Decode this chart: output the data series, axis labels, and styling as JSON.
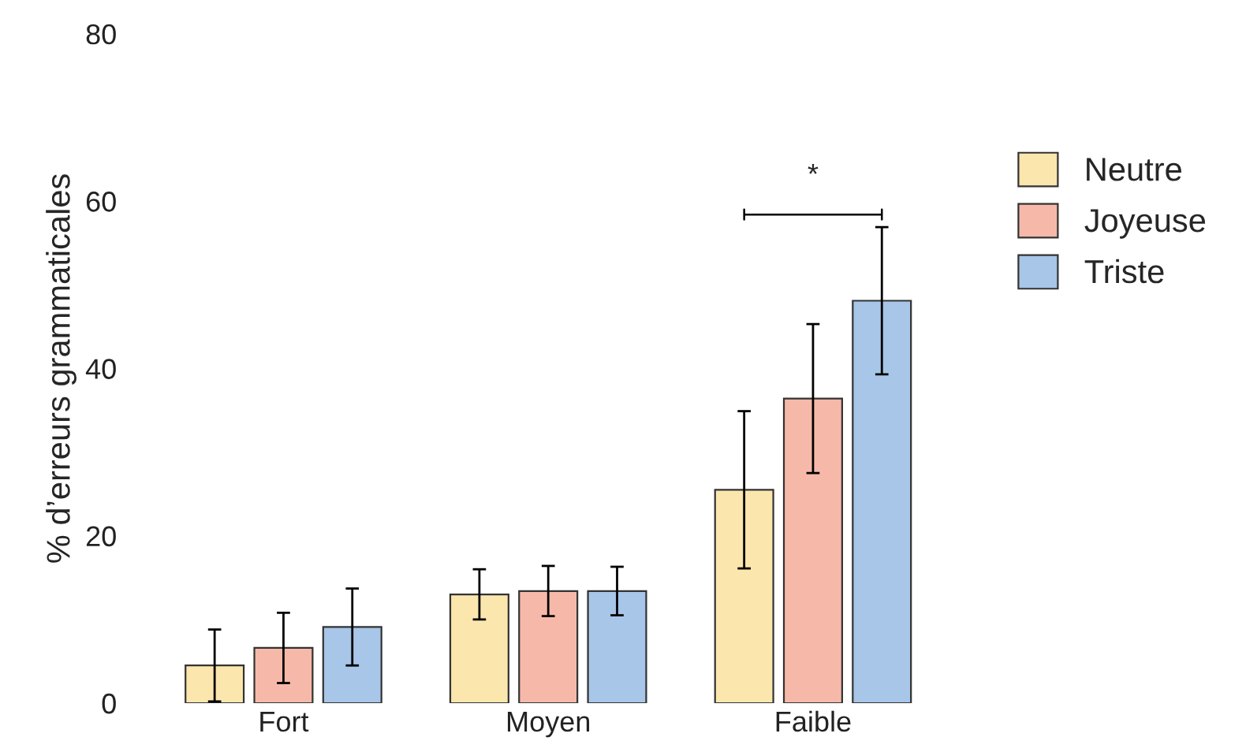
{
  "chart_data": {
    "type": "bar",
    "ylabel": "% d’erreurs grammaticales",
    "categories": [
      "Fort",
      "Moyen",
      "Faible"
    ],
    "series": [
      {
        "name": "Neutre",
        "color": "#fbe6ad",
        "values": [
          4.5,
          13.0,
          25.5
        ],
        "errors": [
          4.3,
          3.0,
          9.4
        ]
      },
      {
        "name": "Joyeuse",
        "color": "#f6b9a9",
        "values": [
          6.6,
          13.4,
          36.4
        ],
        "errors": [
          4.2,
          3.0,
          8.9
        ]
      },
      {
        "name": "Triste",
        "color": "#a7c6e8",
        "values": [
          9.1,
          13.4,
          48.1
        ],
        "errors": [
          4.6,
          2.9,
          8.8
        ]
      }
    ],
    "ylim": [
      0,
      80
    ],
    "yticks": [
      0,
      20,
      40,
      60,
      80
    ],
    "grid": false,
    "legend": "right",
    "annotations": [
      "*"
    ]
  }
}
